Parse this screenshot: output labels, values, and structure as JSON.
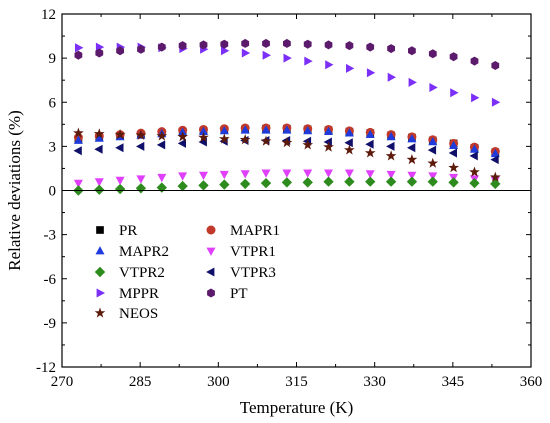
{
  "chart_data": {
    "type": "scatter",
    "title": "",
    "xlabel": "Temperature (K)",
    "ylabel": "Relative deviations (%)",
    "xlim": [
      270,
      360
    ],
    "ylim": [
      -12,
      12
    ],
    "xticks": [
      270,
      285,
      300,
      315,
      330,
      345,
      360
    ],
    "yticks": [
      -12,
      -9,
      -6,
      -3,
      0,
      3,
      6,
      9,
      12
    ],
    "grid": false,
    "zero_line": true,
    "legend_position": "lower-left",
    "x": [
      273.15,
      277.15,
      281.15,
      285.15,
      289.15,
      293.15,
      297.15,
      301.15,
      305.15,
      309.15,
      313.15,
      317.15,
      321.15,
      325.15,
      329.15,
      333.15,
      337.15,
      341.15,
      345.15,
      349.15,
      353.15
    ],
    "series": [
      {
        "name": "PR",
        "marker": "square",
        "color": "#000000",
        "values": [
          3.5,
          3.6,
          3.7,
          3.8,
          3.9,
          4.0,
          4.05,
          4.1,
          4.15,
          4.2,
          4.2,
          4.15,
          4.1,
          4.0,
          3.9,
          3.75,
          3.6,
          3.4,
          3.2,
          2.9,
          2.6
        ]
      },
      {
        "name": "MAPR1",
        "marker": "circle",
        "color": "#c0392b",
        "values": [
          3.6,
          3.7,
          3.8,
          3.9,
          4.0,
          4.1,
          4.15,
          4.2,
          4.25,
          4.25,
          4.25,
          4.2,
          4.15,
          4.05,
          3.95,
          3.8,
          3.65,
          3.45,
          3.2,
          2.95,
          2.65
        ]
      },
      {
        "name": "MAPR2",
        "marker": "triangle-up",
        "color": "#1f3bdb",
        "values": [
          3.4,
          3.55,
          3.65,
          3.75,
          3.85,
          3.95,
          4.0,
          4.05,
          4.1,
          4.1,
          4.1,
          4.05,
          4.0,
          3.9,
          3.8,
          3.65,
          3.5,
          3.3,
          3.05,
          2.8,
          2.5
        ]
      },
      {
        "name": "VTPR1",
        "marker": "triangle-down",
        "color": "#e040fb",
        "values": [
          0.5,
          0.6,
          0.7,
          0.8,
          0.9,
          1.0,
          1.05,
          1.1,
          1.15,
          1.2,
          1.2,
          1.2,
          1.2,
          1.2,
          1.15,
          1.1,
          1.05,
          1.0,
          0.9,
          0.8,
          0.7
        ]
      },
      {
        "name": "VTPR2",
        "marker": "diamond",
        "color": "#2e8b1e",
        "values": [
          0.0,
          0.05,
          0.1,
          0.15,
          0.2,
          0.3,
          0.35,
          0.4,
          0.45,
          0.5,
          0.55,
          0.55,
          0.6,
          0.6,
          0.6,
          0.6,
          0.6,
          0.6,
          0.55,
          0.5,
          0.45
        ]
      },
      {
        "name": "VTPR3",
        "marker": "triangle-left",
        "color": "#10106b",
        "values": [
          2.7,
          2.8,
          2.9,
          3.0,
          3.1,
          3.2,
          3.3,
          3.35,
          3.4,
          3.4,
          3.4,
          3.35,
          3.3,
          3.25,
          3.15,
          3.0,
          2.9,
          2.75,
          2.55,
          2.35,
          2.1
        ]
      },
      {
        "name": "MPPR",
        "marker": "triangle-right",
        "color": "#7b2ff7",
        "values": [
          9.7,
          9.75,
          9.75,
          9.75,
          9.7,
          9.65,
          9.6,
          9.5,
          9.35,
          9.2,
          9.0,
          8.8,
          8.55,
          8.3,
          8.0,
          7.7,
          7.35,
          7.0,
          6.65,
          6.3,
          6.0
        ]
      },
      {
        "name": "PT",
        "marker": "hexagon",
        "color": "#5b1a6b",
        "values": [
          9.2,
          9.35,
          9.5,
          9.6,
          9.75,
          9.85,
          9.9,
          9.95,
          10.0,
          10.0,
          10.0,
          9.95,
          9.9,
          9.85,
          9.75,
          9.65,
          9.5,
          9.3,
          9.1,
          8.8,
          8.5
        ]
      },
      {
        "name": "NEOS",
        "marker": "star",
        "color": "#5c1a0a",
        "values": [
          3.9,
          3.85,
          3.8,
          3.75,
          3.7,
          3.65,
          3.6,
          3.5,
          3.45,
          3.35,
          3.25,
          3.1,
          2.95,
          2.75,
          2.55,
          2.35,
          2.1,
          1.85,
          1.55,
          1.25,
          0.9
        ]
      }
    ]
  }
}
